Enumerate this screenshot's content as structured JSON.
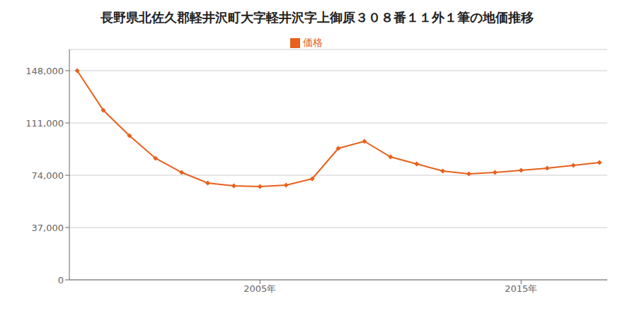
{
  "chart_data": {
    "type": "line",
    "title": "長野県北佐久郡軽井沢町大字軽井沢字上御原３０８番１１外１筆の地価推移",
    "x": [
      1998,
      1999,
      2000,
      2001,
      2002,
      2003,
      2004,
      2005,
      2006,
      2007,
      2008,
      2009,
      2010,
      2011,
      2012,
      2013,
      2014,
      2015,
      2016,
      2017,
      2018
    ],
    "series": [
      {
        "name": "価格",
        "color": "#e8601c",
        "values": [
          148000,
          120000,
          102000,
          86000,
          76000,
          68500,
          66500,
          66000,
          67000,
          71500,
          93000,
          98000,
          87000,
          82000,
          77000,
          75000,
          76000,
          77500,
          79000,
          81000,
          83000
        ],
        "marker": "diamond"
      }
    ],
    "xlim": [
      1997.7,
      2018.3
    ],
    "xticks": [
      {
        "value": 2005,
        "label": "2005年"
      },
      {
        "value": 2015,
        "label": "2015年"
      }
    ],
    "ylim": [
      0,
      163000
    ],
    "yticks": [
      0,
      {
        "value": 37000,
        "label": "37,000"
      },
      {
        "value": 74000,
        "label": "74,000"
      },
      {
        "value": 111000,
        "label": "111,000"
      },
      {
        "value": 148000,
        "label": "148,000"
      }
    ],
    "grid": "y",
    "legend": "top"
  }
}
